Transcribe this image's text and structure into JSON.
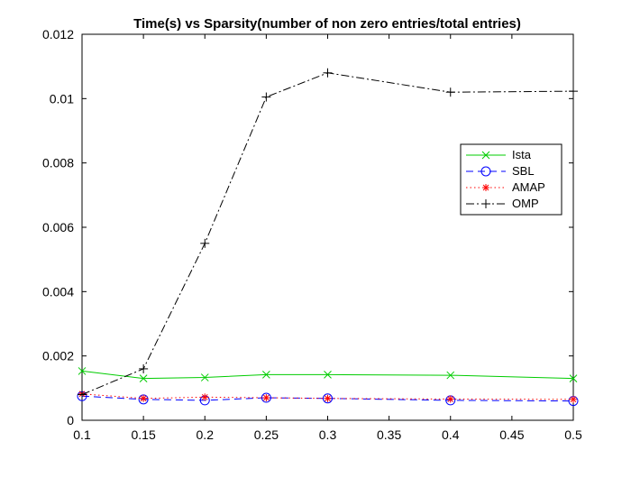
{
  "chart_data": {
    "type": "line",
    "title": "Time(s) vs Sparsity(number of non zero entries/total entries)",
    "xlabel": "",
    "ylabel": "",
    "xlim": [
      0.1,
      0.5
    ],
    "ylim": [
      0,
      0.012
    ],
    "grid": false,
    "legend_position": "right",
    "x_ticks": [
      "0.1",
      "0.15",
      "0.2",
      "0.25",
      "0.3",
      "0.35",
      "0.4",
      "0.45",
      "0.5"
    ],
    "y_ticks": [
      "0",
      "0.002",
      "0.004",
      "0.006",
      "0.008",
      "0.01",
      "0.012"
    ],
    "x": [
      0.1,
      0.15,
      0.2,
      0.25,
      0.3,
      0.4,
      0.5
    ],
    "series": [
      {
        "name": "Ista",
        "values": [
          0.00153,
          0.0013,
          0.00133,
          0.00142,
          0.00142,
          0.0014,
          0.0013
        ],
        "color": "#00cc00",
        "marker": "x",
        "line_style": "solid"
      },
      {
        "name": "SBL",
        "values": [
          0.00075,
          0.00065,
          0.00062,
          0.0007,
          0.00068,
          0.00062,
          0.0006
        ],
        "color": "#0000ff",
        "marker": "o",
        "line_style": "dashed"
      },
      {
        "name": "AMAP",
        "values": [
          0.00082,
          0.00068,
          0.00072,
          0.0007,
          0.00068,
          0.00066,
          0.00065
        ],
        "color": "#ff0000",
        "marker": "*",
        "line_style": "dotted"
      },
      {
        "name": "OMP",
        "values": [
          0.0008,
          0.0016,
          0.0055,
          0.01005,
          0.0108,
          0.0102,
          0.01023
        ],
        "color": "#000000",
        "marker": "+",
        "line_style": "dashdot"
      }
    ]
  }
}
